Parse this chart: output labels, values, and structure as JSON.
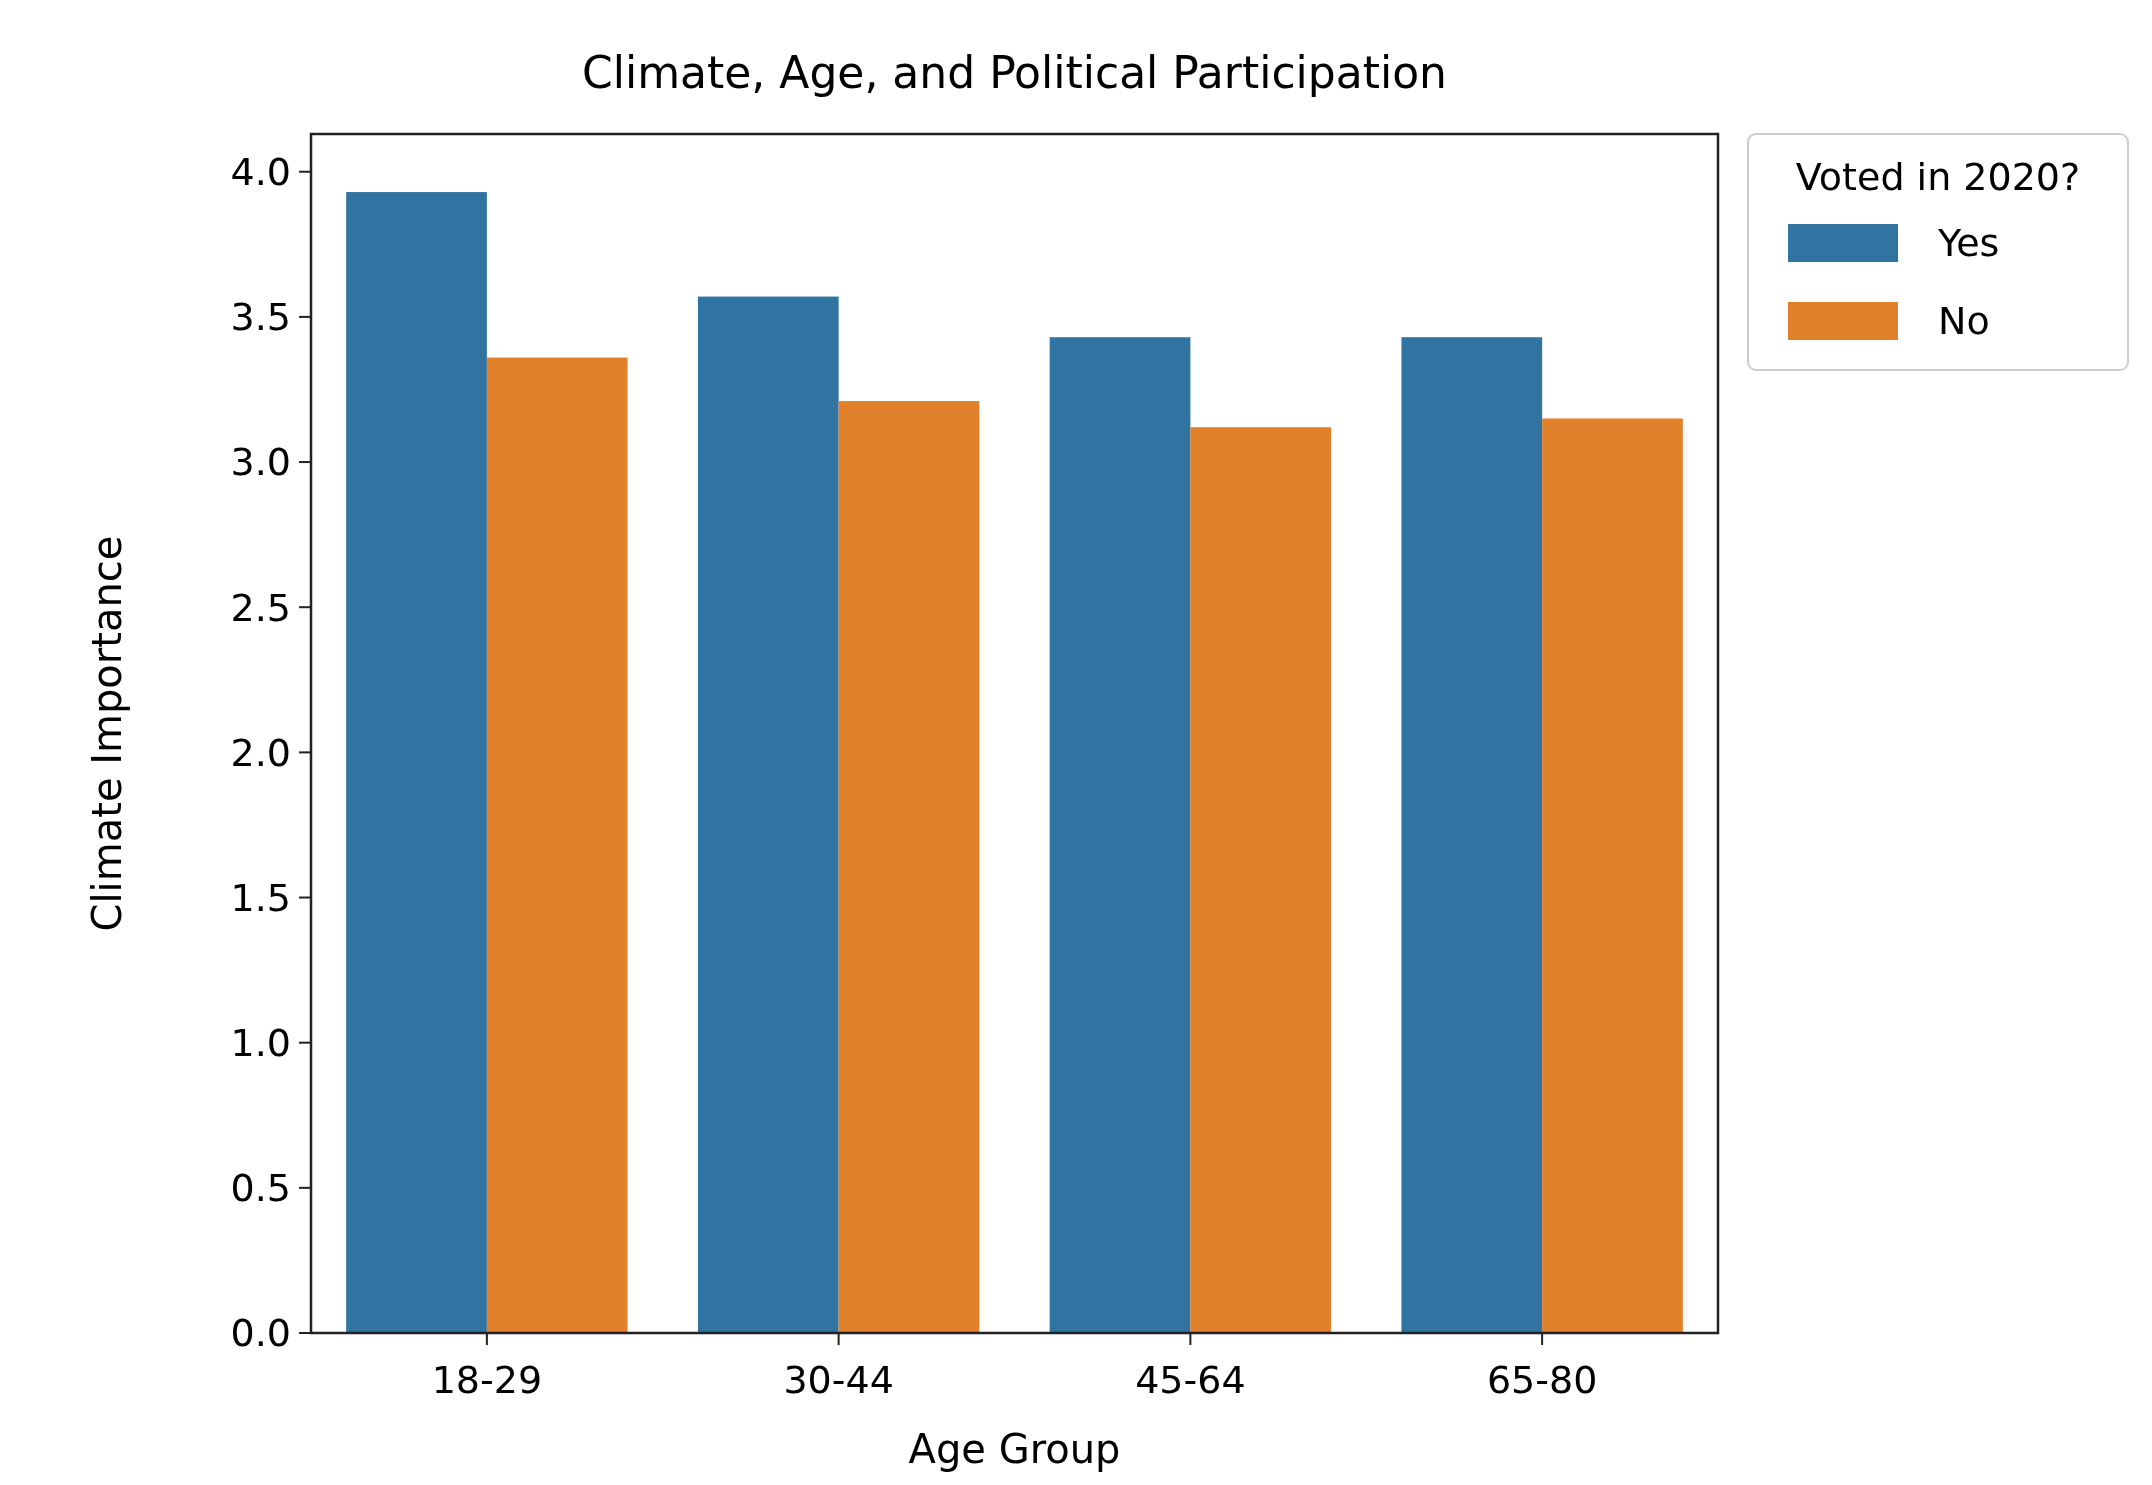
{
  "chart_data": {
    "type": "bar",
    "title": "Climate, Age, and Political Participation",
    "xlabel": "Age Group",
    "ylabel": "Climate Importance",
    "legend_title": "Voted in 2020?",
    "categories": [
      "18-29",
      "30-44",
      "45-64",
      "65-80"
    ],
    "series": [
      {
        "name": "Yes",
        "color": "#3274a1",
        "values": [
          3.93,
          3.57,
          3.43,
          3.43
        ]
      },
      {
        "name": "No",
        "color": "#e1812c",
        "values": [
          3.36,
          3.21,
          3.12,
          3.15
        ]
      }
    ],
    "ylim": [
      0,
      4.13
    ],
    "yticks": [
      {
        "value": 0,
        "label": "0.0"
      },
      {
        "value": 0.5,
        "label": "0.5"
      },
      {
        "value": 1,
        "label": "1.0"
      },
      {
        "value": 1.5,
        "label": "1.5"
      },
      {
        "value": 2,
        "label": "2.0"
      },
      {
        "value": 2.5,
        "label": "2.5"
      },
      {
        "value": 3,
        "label": "3.0"
      },
      {
        "value": 3.5,
        "label": "3.5"
      },
      {
        "value": 4,
        "label": "4.0"
      }
    ],
    "legend": "top right",
    "grid": false
  }
}
